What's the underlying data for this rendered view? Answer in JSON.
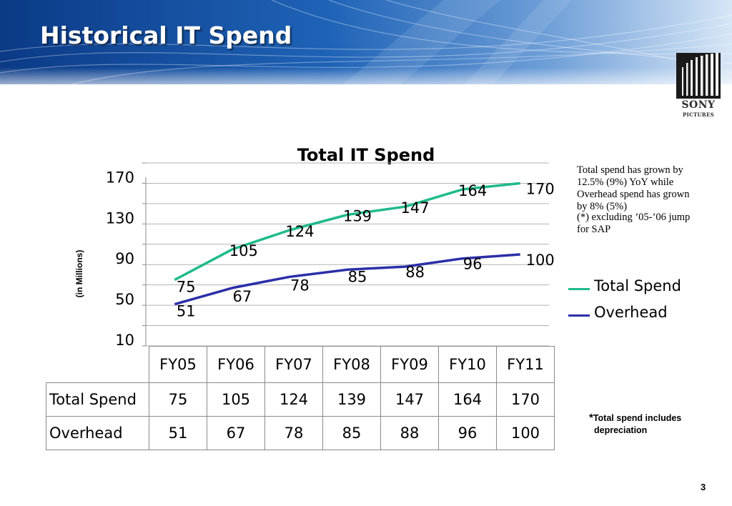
{
  "slide": {
    "title": "Historical IT Spend",
    "page_number": "3"
  },
  "logo": {
    "brand": "SONY",
    "sub": "PICTURES"
  },
  "note": {
    "line1": "Total spend has grown by 12.5% (9%) YoY while Overhead spend has grown by 8% (5%)",
    "line2": "(*) excluding ’05-’06 jump for SAP"
  },
  "footnote": {
    "star": "*",
    "line1": "Total spend includes",
    "line2": "depreciation"
  },
  "colors": {
    "banner_dark": "#0b3a86",
    "banner_light": "#d7e6f6",
    "total_spend": "#1fba8c",
    "overhead": "#2b2fa8",
    "gridline": "#b3b3b3"
  },
  "chart_data": {
    "type": "line",
    "title": "Total IT Spend",
    "ylabel": "(in Millions)",
    "xlabel": "",
    "categories": [
      "FY05",
      "FY06",
      "FY07",
      "FY08",
      "FY09",
      "FY10",
      "FY11"
    ],
    "series": [
      {
        "name": "Total Spend",
        "values": [
          75,
          105,
          124,
          139,
          147,
          164,
          170
        ],
        "color": "#1fba8c"
      },
      {
        "name": "Overhead",
        "values": [
          51,
          67,
          78,
          85,
          88,
          96,
          100
        ],
        "color": "#2b2fa8"
      }
    ],
    "ylim": [
      10,
      190
    ],
    "yticks": [
      10,
      50,
      90,
      130,
      170
    ],
    "grid": true,
    "legend_position": "right",
    "data_table": true
  }
}
